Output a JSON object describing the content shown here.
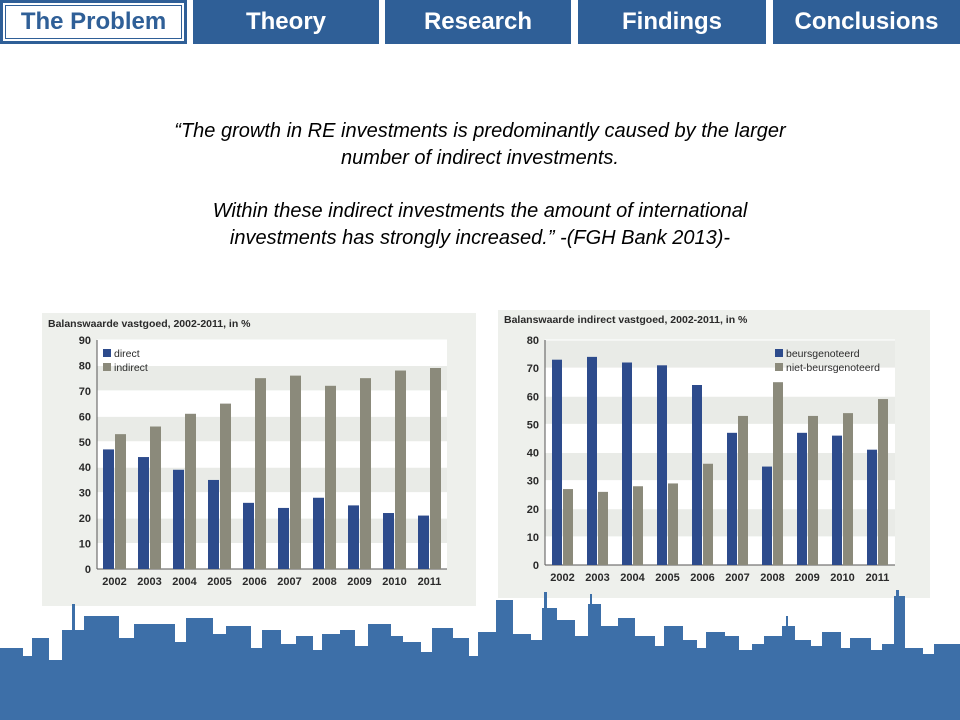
{
  "nav": {
    "tabs": [
      {
        "label": "The Problem",
        "active": true
      },
      {
        "label": "Theory",
        "active": false
      },
      {
        "label": "Research",
        "active": false
      },
      {
        "label": "Findings",
        "active": false
      },
      {
        "label": "Conclusions",
        "active": false
      }
    ]
  },
  "quote": {
    "line1": "“The growth in RE investments is predominantly caused by the larger",
    "line2": "number of indirect investments.",
    "line3": "Within these indirect investments the amount of international",
    "line4": "investments has strongly increased.”   -(FGH Bank 2013)-"
  },
  "colors": {
    "nav_blue": "#2f5f97",
    "series_dark": "#2d4b8c",
    "series_grey": "#8b8a7b",
    "skyline": "#3d6fa8"
  },
  "chart_data": [
    {
      "type": "bar",
      "title": "Balanswaarde vastgoed, 2002-2011, in %",
      "categories": [
        "2002",
        "2003",
        "2004",
        "2005",
        "2006",
        "2007",
        "2008",
        "2009",
        "2010",
        "2011"
      ],
      "series": [
        {
          "name": "direct",
          "values": [
            47,
            44,
            39,
            35,
            26,
            24,
            28,
            25,
            22,
            21
          ]
        },
        {
          "name": "indirect",
          "values": [
            53,
            56,
            61,
            65,
            75,
            76,
            72,
            75,
            78,
            79
          ]
        }
      ],
      "ylim": [
        0,
        90
      ],
      "yticks": [
        0,
        10,
        20,
        30,
        40,
        50,
        60,
        70,
        80,
        90
      ],
      "legend": "top-left",
      "grid": true
    },
    {
      "type": "bar",
      "title": "Balanswaarde indirect vastgoed, 2002-2011, in %",
      "categories": [
        "2002",
        "2003",
        "2004",
        "2005",
        "2006",
        "2007",
        "2008",
        "2009",
        "2010",
        "2011"
      ],
      "series": [
        {
          "name": "beursgenoteerd",
          "values": [
            73,
            74,
            72,
            71,
            64,
            47,
            35,
            47,
            46,
            41
          ]
        },
        {
          "name": "niet-beursgenoteerd",
          "values": [
            27,
            26,
            28,
            29,
            36,
            53,
            65,
            53,
            54,
            59
          ]
        }
      ],
      "ylim": [
        0,
        80
      ],
      "yticks": [
        0,
        10,
        20,
        30,
        40,
        50,
        60,
        70,
        80
      ],
      "legend": "top-right",
      "grid": true
    }
  ]
}
